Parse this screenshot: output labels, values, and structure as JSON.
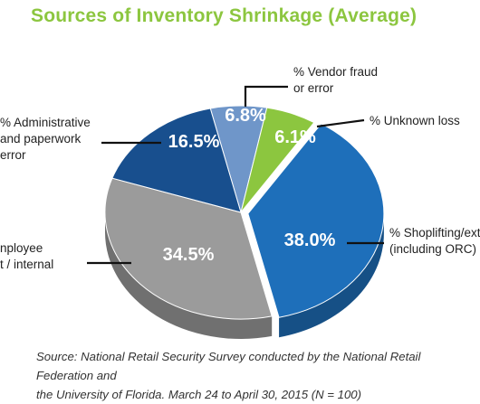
{
  "title": "Sources of Inventory Shrinkage (Average)",
  "source_lines": [
    "Source: National Retail Security Survey conducted by the National Retail Federation and",
    "the University of Florida. March 24 to April 30, 2015  (N = 100)"
  ],
  "chart_data": {
    "type": "pie",
    "title": "Sources of Inventory Shrinkage (Average)",
    "slices": [
      {
        "label": "6.8%",
        "value": 6.8,
        "legend": [
          "% Vendor fraud",
          "or error"
        ],
        "color": "#6f96c9"
      },
      {
        "label": "6.1%",
        "value": 6.1,
        "legend": [
          "% Unknown loss"
        ],
        "color": "#8cc63f"
      },
      {
        "label": "38.0%",
        "value": 38.0,
        "legend": [
          "% Shoplifting/ext",
          "(including ORC)"
        ],
        "color": "#1e6fba"
      },
      {
        "label": "34.5%",
        "value": 34.5,
        "legend": [
          "nployee",
          "t / internal"
        ],
        "color": "#9b9b9b"
      },
      {
        "label": "16.5%",
        "value": 16.5,
        "legend": [
          "% Administrative",
          "and paperwork",
          "error"
        ],
        "color": "#184f8e"
      }
    ]
  }
}
